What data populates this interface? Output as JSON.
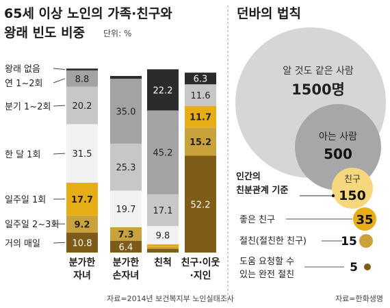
{
  "left": {
    "title_line1": "65세 이상 노인의 가족·친구와",
    "title_line2": "왕래 빈도 비중",
    "unit": "단위: %",
    "source": "자료=2014년 보건복지부 노인실태조사"
  },
  "right": {
    "title": "던바의 법칙",
    "source": "자료=한화생명",
    "label_acquaint": "알 것도 같은 사람",
    "value_acquaint": "1500명",
    "label_known": "아는 사람",
    "value_known": "500",
    "label_friend": "친구",
    "value_friend": "150",
    "standard_line1": "인간의",
    "standard_line2": "친분관계 기준",
    "label_good": "좋은 친구",
    "value_good": "35",
    "label_close": "절친(절친한 친구)",
    "value_close": "15",
    "label_help_line1": "도움 요청할 수",
    "label_help_line2": "있는 완전 절친",
    "value_help": "5"
  },
  "colors": {
    "none": "#2b2b2b",
    "yearly": "#a3a3a3",
    "quarterly": "#c7c7c7",
    "monthly": "#f2f2f2",
    "weekly": "#e6ad17",
    "weekly23": "#caa23b",
    "daily": "#7e5b17"
  },
  "chart_data": {
    "type": "bar",
    "stacked": true,
    "categories": [
      {
        "line1": "분가한",
        "line2": "자녀"
      },
      {
        "line1": "분가한",
        "line2": "손자녀"
      },
      {
        "line1": "친척",
        "line2": ""
      },
      {
        "line1": "친구·이웃",
        "line2": "·지인"
      }
    ],
    "series": [
      {
        "name": "거의 매일",
        "key": "daily",
        "values": [
          10.8,
          6.4,
          2.0,
          52.2
        ]
      },
      {
        "name": "일주일 2~3회",
        "key": "weekly23",
        "values": [
          9.2,
          7.3,
          1.0,
          15.2
        ]
      },
      {
        "name": "일주일 1회",
        "key": "weekly",
        "values": [
          17.7,
          0.0,
          1.5,
          11.7
        ]
      },
      {
        "name": "한 달 1회",
        "key": "monthly",
        "values": [
          31.5,
          19.7,
          9.8,
          0.0
        ]
      },
      {
        "name": "분기 1~2회",
        "key": "quarterly",
        "values": [
          20.2,
          25.3,
          17.1,
          11.6
        ]
      },
      {
        "name": "연 1~2회",
        "key": "yearly",
        "values": [
          8.8,
          35.0,
          45.2,
          0.0
        ]
      },
      {
        "name": "왕래 없음",
        "key": "none",
        "values": [
          1.0,
          1.5,
          22.2,
          6.3
        ]
      }
    ],
    "labels": [
      [
        {
          "key": "daily",
          "text": "10.8"
        },
        {
          "key": "weekly23",
          "text": "9.2"
        },
        {
          "key": "weekly",
          "text": "17.7"
        },
        {
          "key": "monthly",
          "text": "31.5"
        },
        {
          "key": "quarterly",
          "text": "20.2"
        },
        {
          "key": "yearly",
          "text": "8.8"
        }
      ],
      [
        {
          "key": "daily",
          "text": "6.4"
        },
        {
          "key": "weekly23",
          "text": "7.3"
        },
        {
          "key": "monthly",
          "text": "19.7"
        },
        {
          "key": "quarterly",
          "text": "25.3"
        },
        {
          "key": "yearly",
          "text": "35.0"
        }
      ],
      [
        {
          "key": "monthly",
          "text": "9.8"
        },
        {
          "key": "quarterly",
          "text": "17.1"
        },
        {
          "key": "yearly",
          "text": "45.2"
        },
        {
          "key": "none",
          "text": "22.2"
        }
      ],
      [
        {
          "key": "daily",
          "text": "52.2"
        },
        {
          "key": "weekly23",
          "text": "15.2"
        },
        {
          "key": "weekly",
          "text": "11.7"
        },
        {
          "key": "quarterly",
          "text": "11.6"
        },
        {
          "key": "none",
          "text": "6.3"
        }
      ]
    ],
    "dunbar": [
      {
        "name": "알 것도 같은 사람",
        "value": 1500
      },
      {
        "name": "아는 사람",
        "value": 500
      },
      {
        "name": "친구",
        "value": 150
      },
      {
        "name": "좋은 친구",
        "value": 35
      },
      {
        "name": "절친(절친한 친구)",
        "value": 15
      },
      {
        "name": "도움 요청할 수 있는 완전 절친",
        "value": 5
      }
    ]
  }
}
